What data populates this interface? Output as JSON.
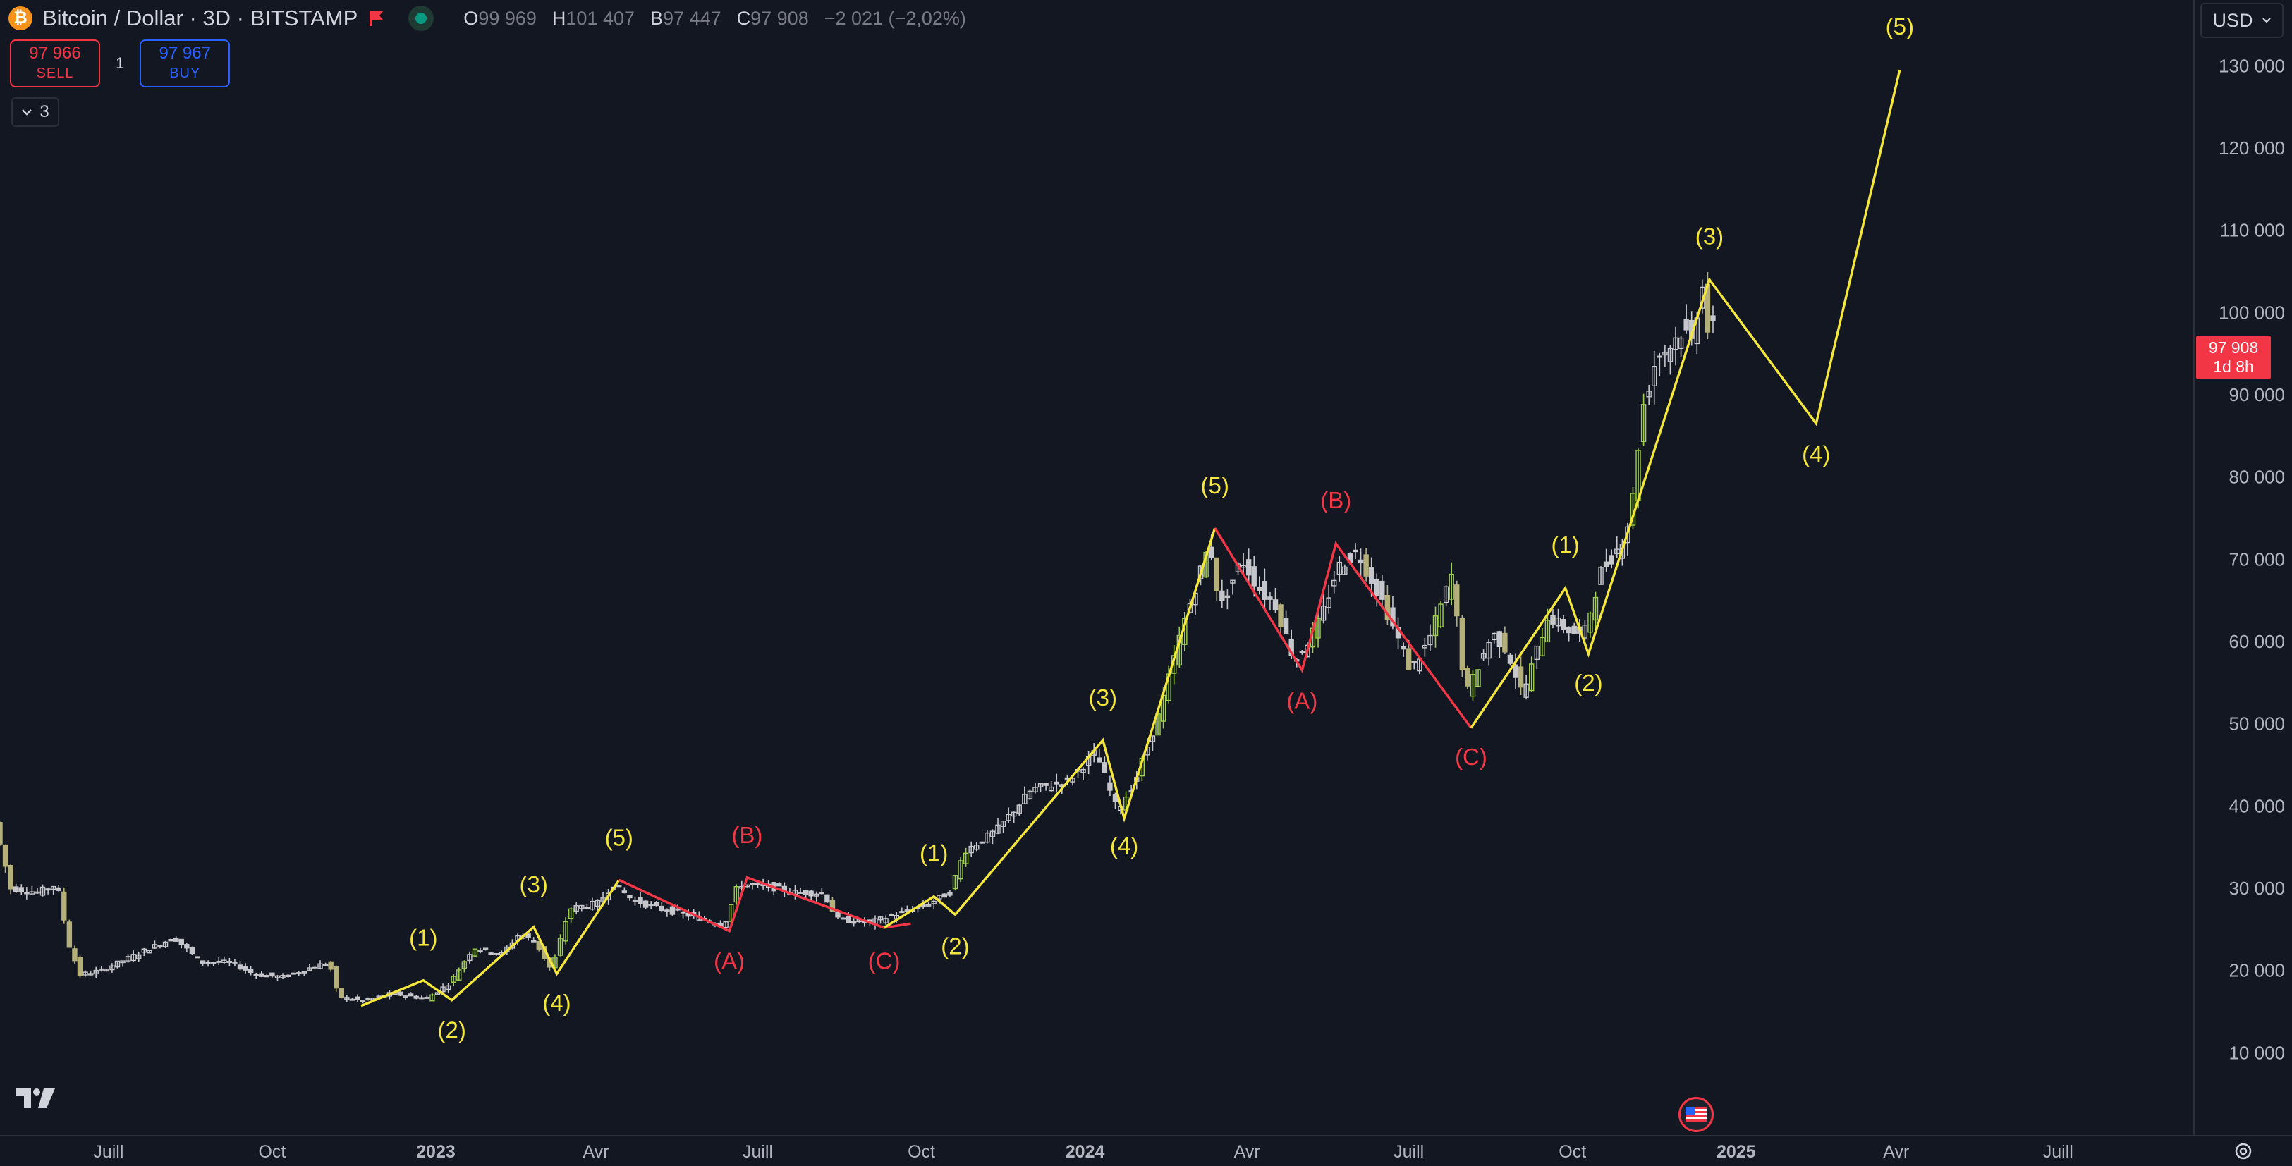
{
  "header": {
    "symbol_title": "Bitcoin / Dollar · 3D · BITSTAMP",
    "ohlc": {
      "o_label": "O",
      "o_value": "99 969",
      "h_label": "H",
      "h_value": "101 407",
      "b_label": "B",
      "b_value": "97 447",
      "c_label": "C",
      "c_value": "97 908",
      "change": "−2 021 (−2,02%)"
    }
  },
  "trade": {
    "sell_price": "97 966",
    "sell_label": "SELL",
    "spread": "1",
    "buy_price": "97 967",
    "buy_label": "BUY"
  },
  "indicators_toggle": {
    "count": "3"
  },
  "price_scale": {
    "currency": "USD",
    "last_price": "97 908",
    "countdown": "1d 8h"
  },
  "colors": {
    "background": "#131722",
    "impulse_wave": "#f5e73a",
    "corrective_wave": "#f23645",
    "candle_up": "#9fce4c",
    "candle_down": "#b5b07a",
    "candle_neutral": "#c6c7cc",
    "last_price": "#f23645",
    "buy": "#2962ff"
  },
  "chart_data": {
    "type": "line",
    "title": "",
    "ylim": [
      0,
      138000
    ],
    "x_range": [
      "2022-05-01",
      "2025-09-15"
    ],
    "y_ticks": [
      {
        "v": 10000,
        "label": "10 000"
      },
      {
        "v": 20000,
        "label": "20 000"
      },
      {
        "v": 30000,
        "label": "30 000"
      },
      {
        "v": 40000,
        "label": "40 000"
      },
      {
        "v": 50000,
        "label": "50 000"
      },
      {
        "v": 60000,
        "label": "60 000"
      },
      {
        "v": 70000,
        "label": "70 000"
      },
      {
        "v": 80000,
        "label": "80 000"
      },
      {
        "v": 90000,
        "label": "90 000"
      },
      {
        "v": 100000,
        "label": "100 000"
      },
      {
        "v": 110000,
        "label": "110 000"
      },
      {
        "v": 120000,
        "label": "120 000"
      },
      {
        "v": 130000,
        "label": "130 000"
      }
    ],
    "x_ticks": [
      {
        "date": "2022-07-01",
        "label": "Juill",
        "bold": false
      },
      {
        "date": "2022-10-01",
        "label": "Oct",
        "bold": false
      },
      {
        "date": "2023-01-01",
        "label": "2023",
        "bold": true
      },
      {
        "date": "2023-04-01",
        "label": "Avr",
        "bold": false
      },
      {
        "date": "2023-07-01",
        "label": "Juill",
        "bold": false
      },
      {
        "date": "2023-10-01",
        "label": "Oct",
        "bold": false
      },
      {
        "date": "2024-01-01",
        "label": "2024",
        "bold": true
      },
      {
        "date": "2024-04-01",
        "label": "Avr",
        "bold": false
      },
      {
        "date": "2024-07-01",
        "label": "Juill",
        "bold": false
      },
      {
        "date": "2024-10-01",
        "label": "Oct",
        "bold": false
      },
      {
        "date": "2025-01-01",
        "label": "2025",
        "bold": true
      },
      {
        "date": "2025-04-01",
        "label": "Avr",
        "bold": false
      },
      {
        "date": "2025-07-01",
        "label": "Juill",
        "bold": false
      }
    ],
    "price_series": {
      "name": "",
      "points": [
        [
          "2022-05-01",
          38000
        ],
        [
          "2022-05-10",
          30000
        ],
        [
          "2022-05-25",
          29500
        ],
        [
          "2022-06-05",
          30500
        ],
        [
          "2022-06-12",
          23000
        ],
        [
          "2022-06-18",
          19500
        ],
        [
          "2022-06-30",
          20000
        ],
        [
          "2022-07-10",
          21000
        ],
        [
          "2022-07-25",
          22500
        ],
        [
          "2022-08-10",
          24000
        ],
        [
          "2022-08-25",
          21000
        ],
        [
          "2022-09-10",
          21000
        ],
        [
          "2022-09-25",
          19500
        ],
        [
          "2022-10-10",
          19200
        ],
        [
          "2022-10-28",
          20500
        ],
        [
          "2022-11-05",
          21000
        ],
        [
          "2022-11-10",
          16800
        ],
        [
          "2022-11-25",
          16300
        ],
        [
          "2022-12-10",
          17200
        ],
        [
          "2022-12-30",
          16600
        ],
        [
          "2023-01-12",
          18500
        ],
        [
          "2023-01-25",
          22800
        ],
        [
          "2023-02-10",
          22000
        ],
        [
          "2023-02-20",
          24500
        ],
        [
          "2023-03-01",
          23500
        ],
        [
          "2023-03-10",
          20000
        ],
        [
          "2023-03-20",
          27500
        ],
        [
          "2023-04-05",
          28200
        ],
        [
          "2023-04-14",
          30500
        ],
        [
          "2023-04-25",
          28500
        ],
        [
          "2023-05-10",
          27500
        ],
        [
          "2023-05-25",
          26800
        ],
        [
          "2023-06-15",
          25500
        ],
        [
          "2023-06-23",
          30500
        ],
        [
          "2023-07-10",
          30200
        ],
        [
          "2023-07-25",
          29500
        ],
        [
          "2023-08-10",
          29400
        ],
        [
          "2023-08-18",
          26200
        ],
        [
          "2023-09-05",
          25800
        ],
        [
          "2023-09-15",
          26500
        ],
        [
          "2023-10-05",
          27800
        ],
        [
          "2023-10-20",
          29500
        ],
        [
          "2023-10-28",
          34500
        ],
        [
          "2023-11-15",
          37000
        ],
        [
          "2023-12-05",
          42000
        ],
        [
          "2023-12-25",
          43000
        ],
        [
          "2024-01-10",
          46500
        ],
        [
          "2024-01-22",
          39500
        ],
        [
          "2024-02-01",
          43000
        ],
        [
          "2024-02-15",
          51500
        ],
        [
          "2024-02-28",
          62000
        ],
        [
          "2024-03-14",
          72000
        ],
        [
          "2024-03-20",
          64000
        ],
        [
          "2024-04-01",
          70000
        ],
        [
          "2024-04-12",
          66000
        ],
        [
          "2024-04-20",
          64500
        ],
        [
          "2024-05-01",
          57500
        ],
        [
          "2024-05-15",
          62500
        ],
        [
          "2024-05-25",
          69000
        ],
        [
          "2024-06-05",
          71000
        ],
        [
          "2024-06-20",
          64500
        ],
        [
          "2024-07-05",
          56500
        ],
        [
          "2024-07-15",
          60000
        ],
        [
          "2024-07-28",
          68000
        ],
        [
          "2024-08-05",
          53500
        ],
        [
          "2024-08-20",
          61000
        ],
        [
          "2024-08-28",
          59000
        ],
        [
          "2024-09-06",
          53500
        ],
        [
          "2024-09-20",
          63000
        ],
        [
          "2024-10-01",
          61500
        ],
        [
          "2024-10-10",
          60500
        ],
        [
          "2024-10-20",
          68500
        ],
        [
          "2024-10-30",
          71500
        ],
        [
          "2024-11-06",
          75500
        ],
        [
          "2024-11-12",
          88000
        ],
        [
          "2024-11-20",
          94500
        ],
        [
          "2024-11-28",
          96000
        ],
        [
          "2024-12-05",
          98000
        ],
        [
          "2024-12-10",
          96500
        ],
        [
          "2024-12-16",
          104000
        ],
        [
          "2024-12-19",
          97908
        ]
      ]
    },
    "series": [
      {
        "name": "",
        "color": "#f5e73a",
        "points": [
          [
            "2022-11-20",
            15700
          ],
          [
            "2022-12-25",
            18800
          ],
          [
            "2023-01-10",
            16400
          ],
          [
            "2023-02-25",
            25300
          ],
          [
            "2023-03-10",
            19600
          ],
          [
            "2023-04-14",
            31000
          ]
        ]
      },
      {
        "name": "",
        "color": "#f23645",
        "points": [
          [
            "2023-04-14",
            31000
          ],
          [
            "2023-06-15",
            24800
          ],
          [
            "2023-06-25",
            31300
          ],
          [
            "2023-09-10",
            25200
          ],
          [
            "2023-09-25",
            25700
          ]
        ]
      },
      {
        "name": "",
        "color": "#f5e73a",
        "points": [
          [
            "2023-09-10",
            25200
          ],
          [
            "2023-10-08",
            29000
          ],
          [
            "2023-10-20",
            26800
          ],
          [
            "2024-01-11",
            48000
          ],
          [
            "2024-01-23",
            38500
          ],
          [
            "2024-03-14",
            73800
          ]
        ]
      },
      {
        "name": "",
        "color": "#f23645",
        "points": [
          [
            "2024-03-14",
            73800
          ],
          [
            "2024-05-02",
            56500
          ],
          [
            "2024-05-21",
            71900
          ],
          [
            "2024-08-05",
            49500
          ]
        ]
      },
      {
        "name": "",
        "color": "#f5e73a",
        "points": [
          [
            "2024-08-05",
            49500
          ],
          [
            "2024-09-27",
            66500
          ],
          [
            "2024-10-10",
            58500
          ],
          [
            "2024-12-17",
            104000
          ],
          [
            "2025-02-15",
            86500
          ],
          [
            "2025-04-03",
            129500
          ]
        ]
      }
    ],
    "annotations": [
      {
        "text": "(1)",
        "date": "2022-12-25",
        "y": 23000,
        "color": "#f5e73a"
      },
      {
        "text": "(2)",
        "date": "2023-01-10",
        "y": 11800,
        "color": "#f5e73a"
      },
      {
        "text": "(3)",
        "date": "2023-02-25",
        "y": 29500,
        "color": "#f5e73a"
      },
      {
        "text": "(4)",
        "date": "2023-03-10",
        "y": 15100,
        "color": "#f5e73a"
      },
      {
        "text": "(5)",
        "date": "2023-04-14",
        "y": 35200,
        "color": "#f5e73a"
      },
      {
        "text": "(A)",
        "date": "2023-06-15",
        "y": 20200,
        "color": "#f23645"
      },
      {
        "text": "(B)",
        "date": "2023-06-25",
        "y": 35500,
        "color": "#f23645"
      },
      {
        "text": "(C)",
        "date": "2023-09-10",
        "y": 20200,
        "color": "#f23645"
      },
      {
        "text": "(1)",
        "date": "2023-10-08",
        "y": 33300,
        "color": "#f5e73a"
      },
      {
        "text": "(2)",
        "date": "2023-10-20",
        "y": 22000,
        "color": "#f5e73a"
      },
      {
        "text": "(3)",
        "date": "2024-01-11",
        "y": 52200,
        "color": "#f5e73a"
      },
      {
        "text": "(4)",
        "date": "2024-01-23",
        "y": 34200,
        "color": "#f5e73a"
      },
      {
        "text": "(5)",
        "date": "2024-03-14",
        "y": 78000,
        "color": "#f5e73a"
      },
      {
        "text": "(A)",
        "date": "2024-05-02",
        "y": 51800,
        "color": "#f23645"
      },
      {
        "text": "(B)",
        "date": "2024-05-21",
        "y": 76200,
        "color": "#f23645"
      },
      {
        "text": "(C)",
        "date": "2024-08-05",
        "y": 45000,
        "color": "#f23645"
      },
      {
        "text": "(1)",
        "date": "2024-09-27",
        "y": 70800,
        "color": "#f5e73a"
      },
      {
        "text": "(2)",
        "date": "2024-10-10",
        "y": 54000,
        "color": "#f5e73a"
      },
      {
        "text": "(3)",
        "date": "2024-12-17",
        "y": 108300,
        "color": "#f5e73a"
      },
      {
        "text": "(4)",
        "date": "2025-02-15",
        "y": 81800,
        "color": "#f5e73a"
      },
      {
        "text": "(5)",
        "date": "2025-04-03",
        "y": 133800,
        "color": "#f5e73a"
      }
    ]
  }
}
